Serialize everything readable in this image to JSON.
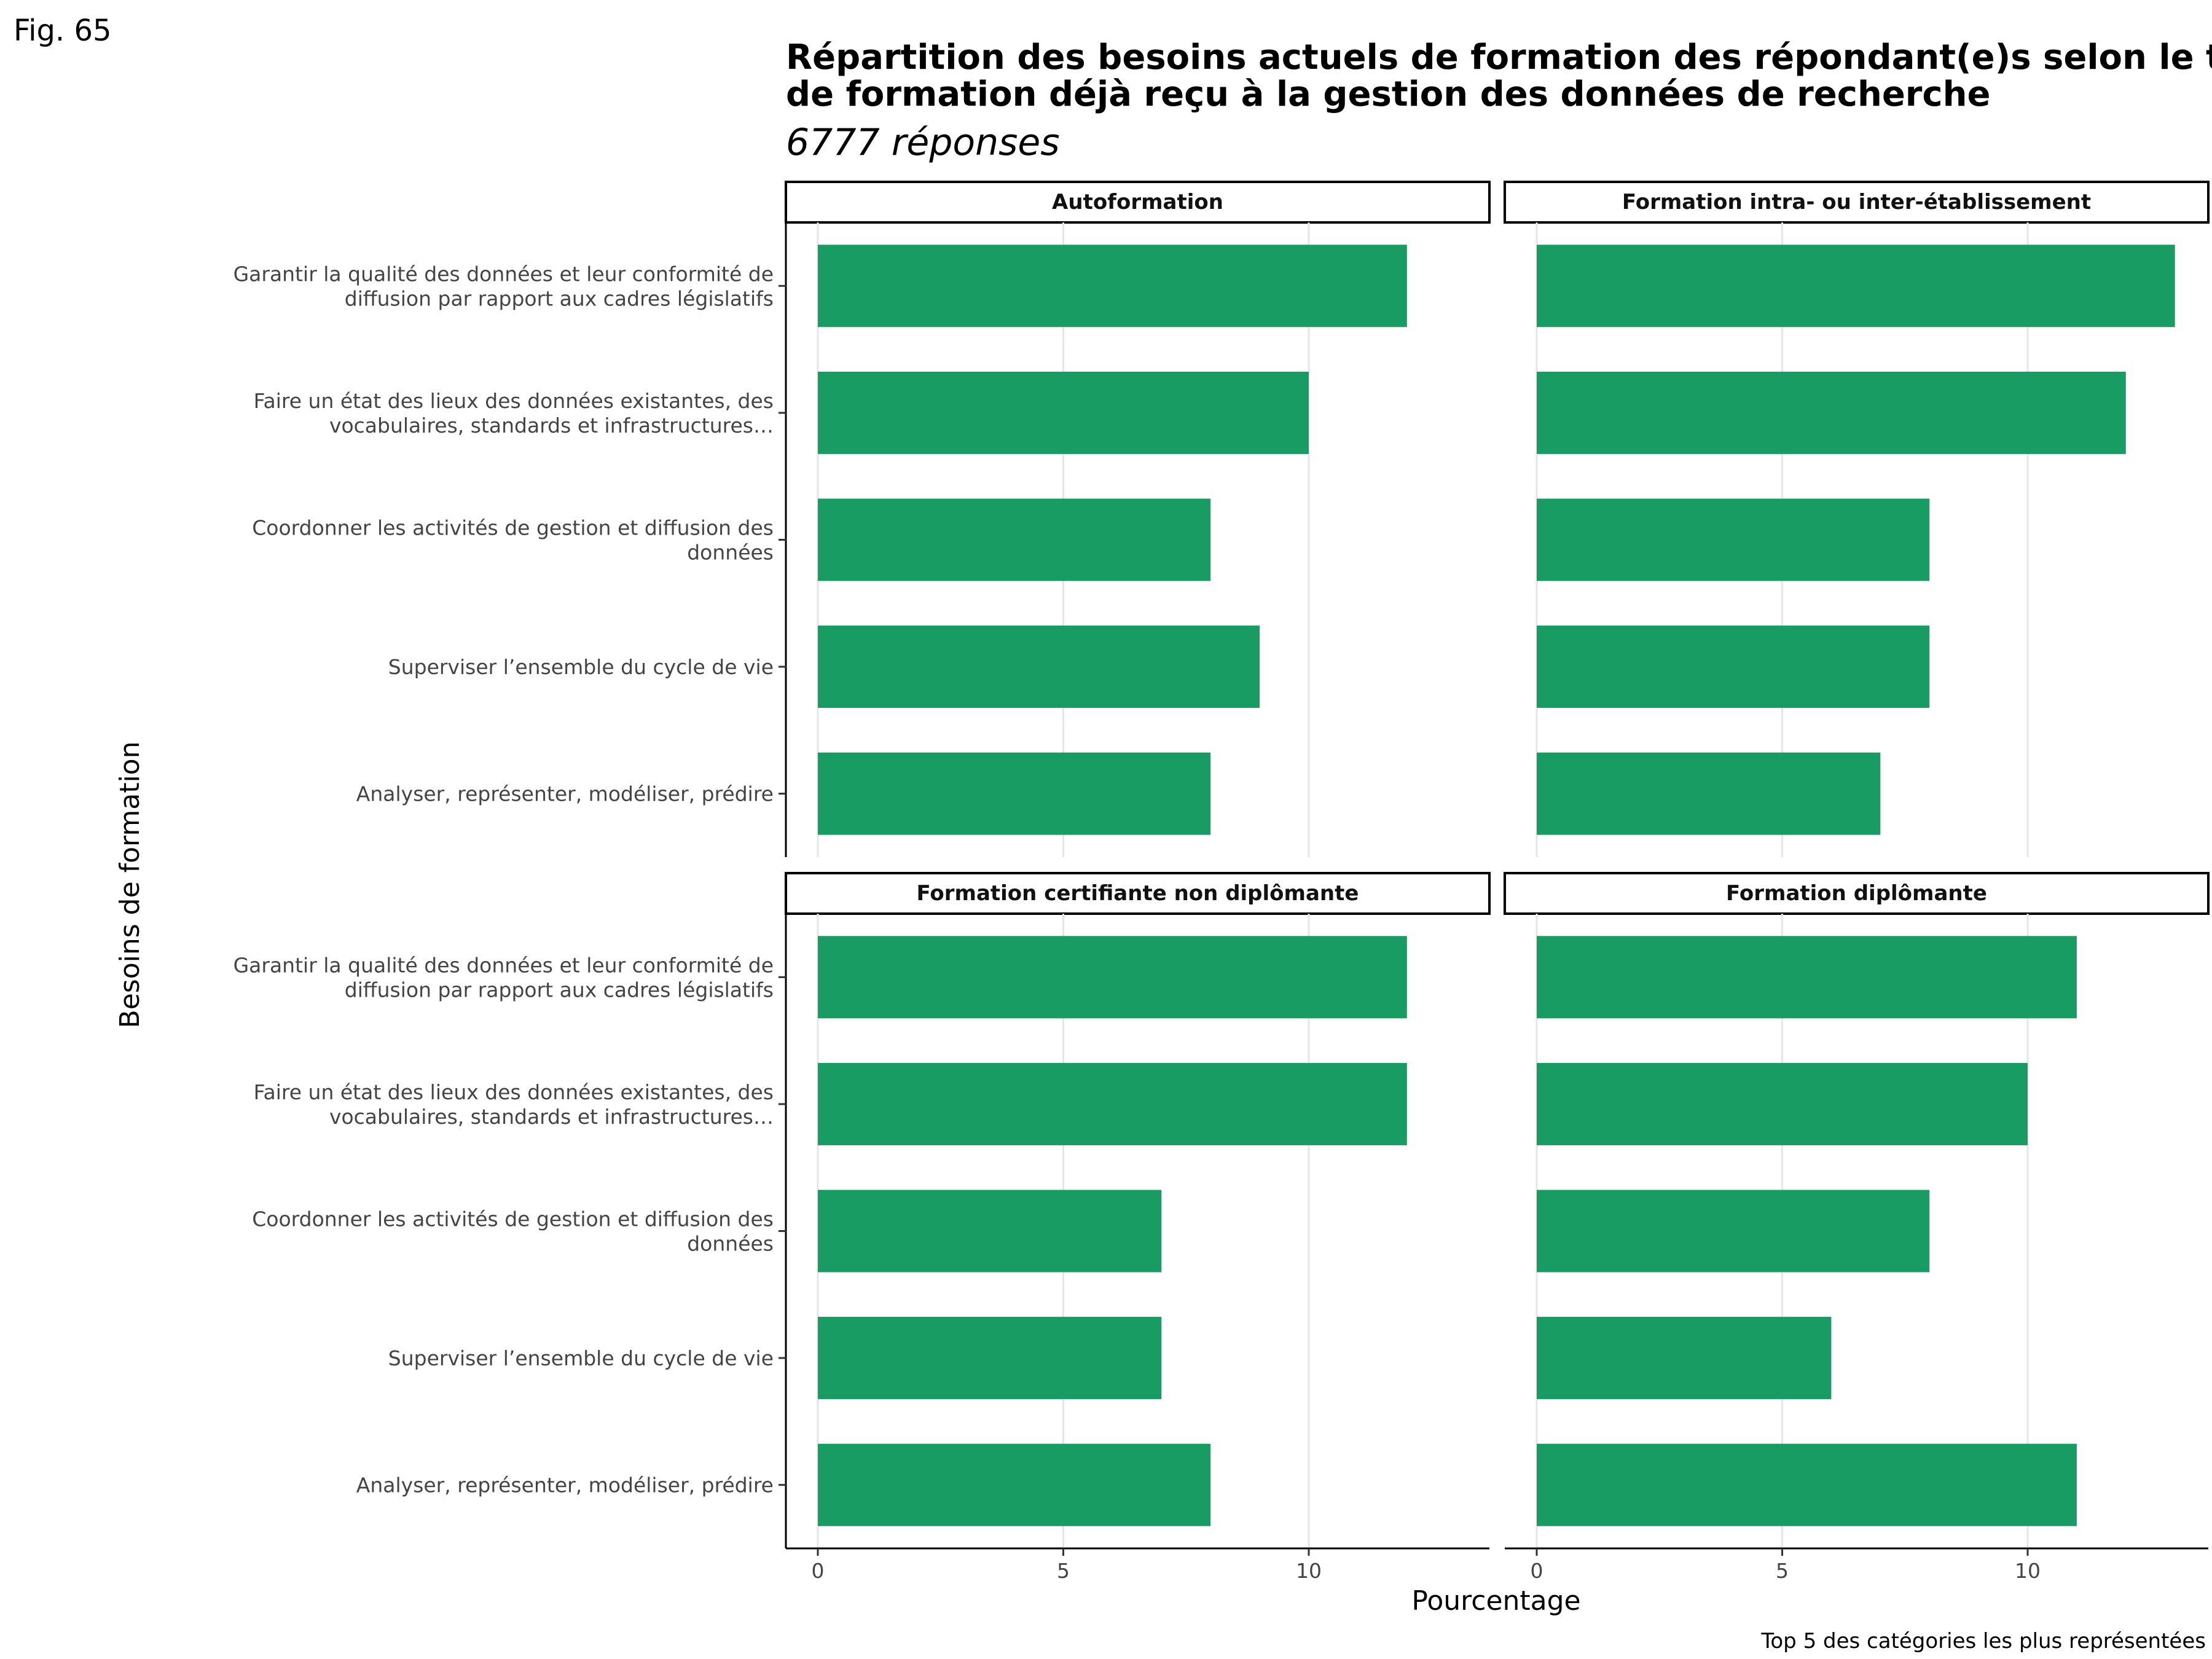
{
  "figure_label": "Fig. 65",
  "chart_data": {
    "type": "bar",
    "orientation": "horizontal",
    "title_lines": [
      "Répartition des besoins actuels de formation des répondant(e)s selon le type",
      "de formation déjà reçu à la gestion des données de recherche"
    ],
    "subtitle": "6777 réponses",
    "xlabel": "Pourcentage",
    "ylabel": "Besoins de formation",
    "caption": "Top 5 des catégories les plus représentées",
    "xlim": [
      0,
      14
    ],
    "xticks": [
      0,
      5,
      10
    ],
    "grid": true,
    "bar_color": "#189c63",
    "categories": [
      [
        "Garantir la qualité des données et leur conformité de",
        "diffusion par rapport aux cadres législatifs"
      ],
      [
        "Faire un état des lieux des données existantes, des",
        "vocabulaires, standards et infrastructures…"
      ],
      [
        "Coordonner les activités de gestion et diffusion des",
        "données"
      ],
      [
        "Superviser l’ensemble du cycle de vie"
      ],
      [
        "Analyser, représenter, modéliser, prédire"
      ]
    ],
    "panels": [
      {
        "name": "Autoformation",
        "values": [
          12,
          10,
          8,
          9,
          8
        ]
      },
      {
        "name": "Formation intra- ou inter-établissement",
        "values": [
          13,
          12,
          8,
          8,
          7
        ]
      },
      {
        "name": "Formation certifiante non diplômante",
        "values": [
          12,
          12,
          7,
          7,
          8
        ]
      },
      {
        "name": "Formation diplômante",
        "values": [
          11,
          10,
          8,
          6,
          11
        ]
      }
    ]
  }
}
